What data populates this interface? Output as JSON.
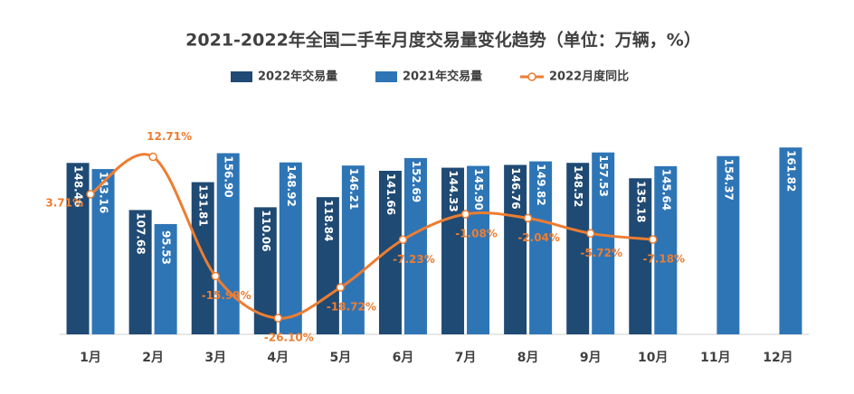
{
  "chart_data": {
    "type": "bar",
    "title": "2021-2022年全国二手车月度交易量变化趋势（单位：万辆，%）",
    "categories": [
      "1月",
      "2月",
      "3月",
      "4月",
      "5月",
      "6月",
      "7月",
      "8月",
      "9月",
      "10月",
      "11月",
      "12月"
    ],
    "series": [
      {
        "name": "2022年交易量",
        "color": "#1f4a73",
        "values": [
          148.46,
          107.68,
          131.81,
          110.06,
          118.84,
          141.66,
          144.33,
          146.76,
          148.52,
          135.18,
          null,
          null
        ],
        "value_labels": [
          "148.46",
          "107.68",
          "131.81",
          "110.06",
          "118.84",
          "141.66",
          "144.33",
          "146.76",
          "148.52",
          "135.18",
          null,
          null
        ]
      },
      {
        "name": "2021年交易量",
        "color": "#2e75b6",
        "values": [
          143.16,
          95.53,
          156.9,
          148.92,
          146.21,
          152.69,
          145.9,
          149.82,
          157.53,
          145.64,
          154.37,
          161.82
        ],
        "value_labels": [
          "143.16",
          "95.53",
          "156.90",
          "148.92",
          "146.21",
          "152.69",
          "145.90",
          "149.82",
          "157.53",
          "145.64",
          "154.37",
          "161.82"
        ]
      },
      {
        "name": "2022月度同比",
        "type": "line",
        "axis": "y2",
        "color": "#ed7d31",
        "values": [
          3.71,
          12.71,
          -15.99,
          -26.1,
          -18.72,
          -7.23,
          -1.08,
          -2.04,
          -5.72,
          -7.18,
          null,
          null
        ],
        "value_labels": [
          "3.71%",
          "12.71%",
          "-15.99%",
          "-26.10%",
          "-18.72%",
          "-7.23%",
          "-1.08%",
          "-2.04%",
          "-5.72%",
          "-7.18%",
          null,
          null
        ]
      }
    ],
    "ylim": [
      0,
      180
    ],
    "y2lim": [
      -30,
      20
    ]
  }
}
